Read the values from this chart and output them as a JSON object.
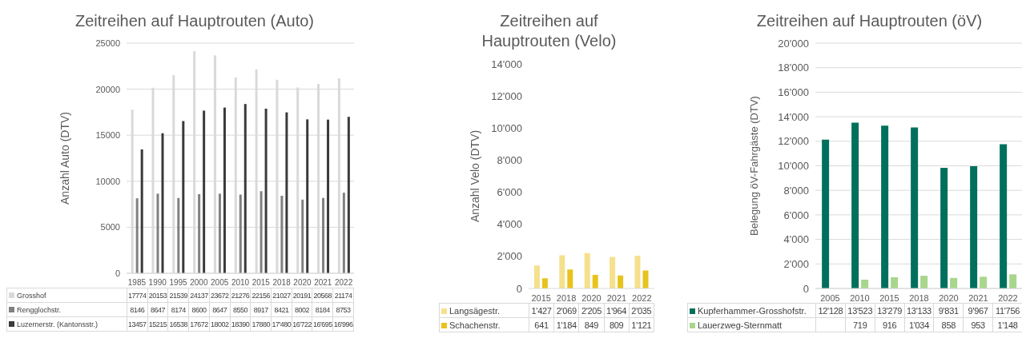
{
  "chart_data": [
    {
      "type": "bar",
      "title": "Zeitreihen auf Hauptrouten (Auto)",
      "ylabel": "Anzahl Auto (DTV)",
      "categories": [
        "1985",
        "1990",
        "1995",
        "2000",
        "2005",
        "2010",
        "2015",
        "2018",
        "2020",
        "2021",
        "2022"
      ],
      "ylim": [
        0,
        25000
      ],
      "yticks": [
        0,
        5000,
        10000,
        15000,
        20000,
        25000
      ],
      "grid": "y",
      "legend": "bottom",
      "series": [
        {
          "name": "Grosshof",
          "color": "#d9d9d9",
          "values": [
            17774,
            20153,
            21539,
            24137,
            23672,
            21276,
            22156,
            21027,
            20191,
            20568,
            21174
          ],
          "value_labels": [
            "17774",
            "20153",
            "21539",
            "24137",
            "23672",
            "21276",
            "22156",
            "21027",
            "20191",
            "20568",
            "21174"
          ]
        },
        {
          "name": "Rengglochstr.",
          "color": "#808080",
          "values": [
            8146,
            8647,
            8174,
            8600,
            8647,
            8550,
            8917,
            8421,
            8002,
            8184,
            8753
          ],
          "value_labels": [
            "8146",
            "8647",
            "8174",
            "8600",
            "8647",
            "8550",
            "8917",
            "8421",
            "8002",
            "8184",
            "8753"
          ]
        },
        {
          "name": "Luzernerstr. (Kantonsstr.)",
          "color": "#3a3a3a",
          "values": [
            13457,
            15215,
            16538,
            17672,
            18002,
            18390,
            17880,
            17480,
            16722,
            16695,
            16996
          ],
          "value_labels": [
            "13457",
            "15215",
            "16538",
            "17672",
            "18002",
            "18390",
            "17880",
            "17'480",
            "16'722",
            "16'695",
            "16'996"
          ]
        }
      ]
    },
    {
      "type": "bar",
      "title": "Zeitreihen auf Hauptrouten (Velo)",
      "ylabel": "Anzahl Velo (DTV)",
      "categories": [
        "2015",
        "2018",
        "2020",
        "2021",
        "2022"
      ],
      "ylim": [
        0,
        14000
      ],
      "yticks": [
        0,
        {
          "value": 2000,
          "label": "2'000"
        },
        {
          "value": 4000,
          "label": "4'000"
        },
        {
          "value": 6000,
          "label": "6'000"
        },
        {
          "value": 8000,
          "label": "8'000"
        },
        {
          "value": 10000,
          "label": "10'000"
        },
        {
          "value": 12000,
          "label": "12'000"
        },
        {
          "value": 14000,
          "label": "14'000"
        }
      ],
      "grid": false,
      "legend": "bottom",
      "series": [
        {
          "name": "Langsägestr.",
          "color": "#f5e08c",
          "values": [
            1427,
            2069,
            2205,
            1964,
            2035
          ],
          "value_labels": [
            "1'427",
            "2'069",
            "2'205",
            "1'964",
            "2'035"
          ]
        },
        {
          "name": "Schachenstr.",
          "color": "#e8c31c",
          "values": [
            641,
            1184,
            849,
            809,
            1121
          ],
          "value_labels": [
            "641",
            "1'184",
            "849",
            "809",
            "1'121"
          ]
        }
      ]
    },
    {
      "type": "bar",
      "title": "Zeitreihen auf Hauptrouten (öV)",
      "ylabel": "Belegung öV-Fahrgäste (DTV)",
      "categories": [
        "2005",
        "2010",
        "2015",
        "2018",
        "2020",
        "2021",
        "2022"
      ],
      "ylim": [
        0,
        20000
      ],
      "yticks": [
        0,
        {
          "value": 2000,
          "label": "2'000"
        },
        {
          "value": 4000,
          "label": "4'000"
        },
        {
          "value": 6000,
          "label": "6'000"
        },
        {
          "value": 8000,
          "label": "8'000"
        },
        {
          "value": 10000,
          "label": "10'000"
        },
        {
          "value": 12000,
          "label": "12'000"
        },
        {
          "value": 14000,
          "label": "14'000"
        },
        {
          "value": 16000,
          "label": "16'000"
        },
        {
          "value": 18000,
          "label": "18'000"
        },
        {
          "value": 20000,
          "label": "20'000"
        }
      ],
      "grid": "y",
      "legend": "bottom",
      "series": [
        {
          "name": "Kupferhammer-Grosshofstr.",
          "color": "#00705c",
          "values": [
            12128,
            13523,
            13279,
            13133,
            9831,
            9967,
            11756
          ],
          "value_labels": [
            "12'128",
            "13'523",
            "13'279",
            "13'133",
            "9'831",
            "9'967",
            "11'756"
          ]
        },
        {
          "name": "Lauerzweg-Sternmatt",
          "color": "#a8d68c",
          "values": [
            null,
            719,
            916,
            1034,
            858,
            953,
            1148
          ],
          "value_labels": [
            null,
            "719",
            "916",
            "1'034",
            "858",
            "953",
            "1'148"
          ]
        }
      ]
    }
  ]
}
